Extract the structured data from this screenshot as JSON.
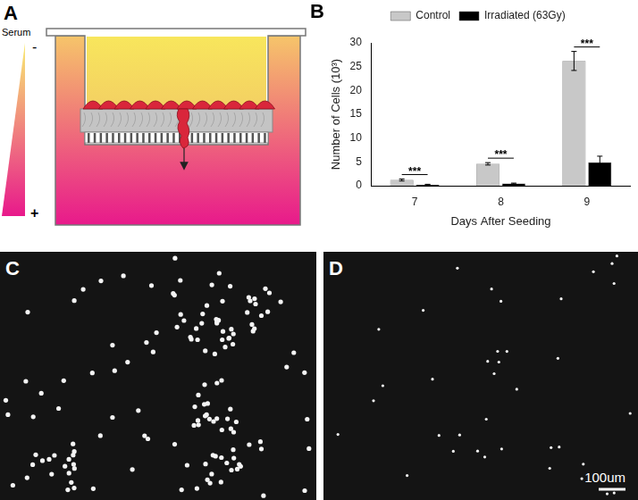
{
  "panels": {
    "A": {
      "label": "A",
      "gradient_label": "Serum",
      "low_sign": "-",
      "high_sign": "+"
    },
    "C": {
      "label": "C"
    },
    "D": {
      "label": "D",
      "scale_bar": "100um"
    }
  },
  "chart_data": {
    "type": "bar",
    "title": "B",
    "x_label": "Days After Seeding",
    "y_label": "Number of Cells (10³)",
    "categories": [
      "7",
      "8",
      "9"
    ],
    "series": [
      {
        "name": "Control",
        "color": "#c8c8c8",
        "values": [
          1.2,
          4.6,
          26.2
        ],
        "errors": [
          0.2,
          0.25,
          2.0
        ]
      },
      {
        "name": "Irradiated (63Gy)",
        "color": "#000000",
        "values": [
          0.25,
          0.45,
          4.9
        ],
        "errors": [
          0.05,
          0.1,
          1.3
        ]
      }
    ],
    "ylim": [
      0,
      30
    ],
    "yticks": [
      0,
      5,
      10,
      15,
      20,
      25,
      30
    ],
    "grid": false,
    "legend": "top",
    "annotations": [
      {
        "category": "7",
        "text": "***"
      },
      {
        "category": "8",
        "text": "***"
      },
      {
        "category": "9",
        "text": "***"
      }
    ]
  }
}
